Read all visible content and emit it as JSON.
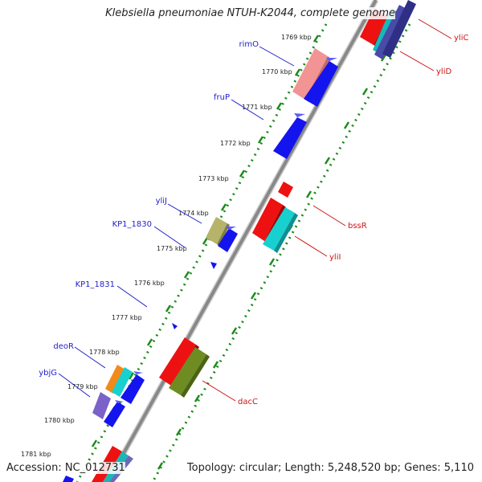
{
  "title": "Klebsiella pneumoniae NTUH-K2044, complete genome",
  "accession": "Accession: NC_012731",
  "topology": "Topology: circular; Length: 5,248,520 bp; Genes: 5,110",
  "colors": {
    "label_left": "#1e1ecc",
    "label_right": "#cc1414",
    "tick": "#1a8a1a",
    "backbone": "#888888"
  },
  "kbp_labels": [
    "1769 kbp",
    "1770 kbp",
    "1771 kbp",
    "1772 kbp",
    "1773 kbp",
    "1774 kbp",
    "1775 kbp",
    "1776 kbp",
    "1777 kbp",
    "1778 kbp",
    "1779 kbp",
    "1780 kbp",
    "1781 kbp"
  ],
  "genes_left": [
    {
      "name": "rimO",
      "color": "#1e1ecc"
    },
    {
      "name": "fruP",
      "color": "#1e1ecc"
    },
    {
      "name": "yliJ",
      "color": "#1e1ecc"
    },
    {
      "name": "KP1_1830",
      "color": "#1e1ecc"
    },
    {
      "name": "KP1_1831",
      "color": "#1e1ecc"
    },
    {
      "name": "deoR",
      "color": "#1e1ecc"
    },
    {
      "name": "ybjG",
      "color": "#1e1ecc"
    }
  ],
  "genes_right": [
    {
      "name": "yliC",
      "color": "#cc1414"
    },
    {
      "name": "yliD",
      "color": "#cc1414"
    },
    {
      "name": "bssR",
      "color": "#cc1414"
    },
    {
      "name": "yliI",
      "color": "#cc1414"
    },
    {
      "name": "dacC",
      "color": "#cc1414"
    }
  ]
}
